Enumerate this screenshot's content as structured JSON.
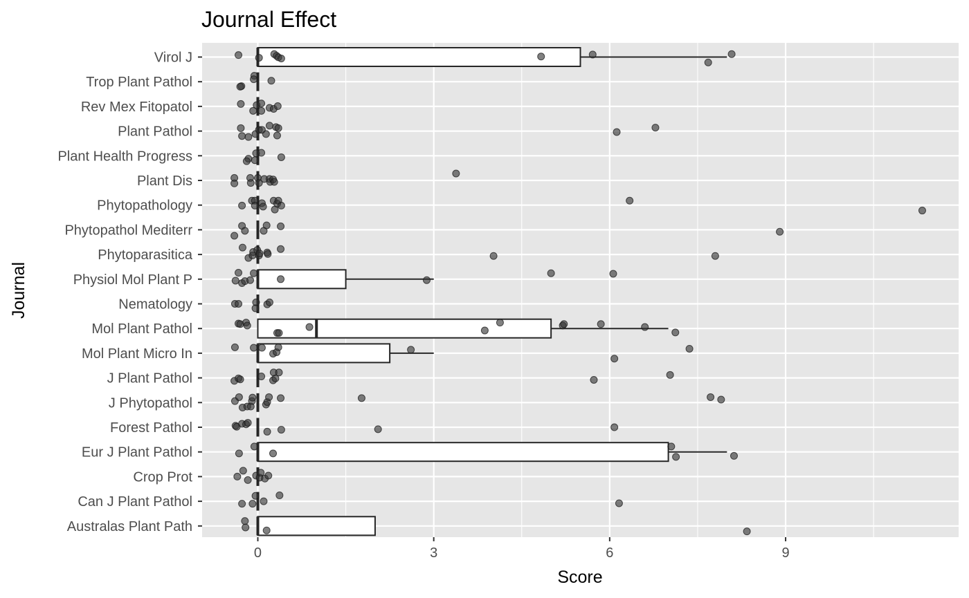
{
  "chart_data": {
    "type": "boxplot",
    "title": "Journal Effect",
    "xlabel": "Score",
    "ylabel": "Journal",
    "xlim": [
      -0.95,
      11.95
    ],
    "x_ticks": [
      0,
      3,
      6,
      9
    ],
    "grid": true,
    "legend": "none",
    "colors": {
      "panel": "#e6e6e6",
      "grid": "#ffffff",
      "box_fill": "#ffffff",
      "box_stroke": "#262626",
      "point": "#333333",
      "tick": "#333333",
      "tick_label": "#4d4d4d"
    },
    "categories": [
      "Virol J",
      "Trop Plant Pathol",
      "Rev Mex Fitopatol",
      "Plant Pathol",
      "Plant Health Progress",
      "Plant Dis",
      "Phytopathology",
      "Phytopathol Mediterr",
      "Phytoparasitica",
      "Physiol Mol Plant P",
      "Nematology",
      "Mol Plant Pathol",
      "Mol Plant Micro In",
      "J Plant Pathol",
      "J Phytopathol",
      "Forest Pathol",
      "Eur J Plant Pathol",
      "Crop Prot",
      "Can J Plant Pathol",
      "Australas Plant Path"
    ],
    "boxes": [
      {
        "name": "Virol J",
        "min": 0,
        "q1": 0,
        "median": 0,
        "q3": 5.5,
        "max": 8.0
      },
      {
        "name": "Trop Plant Pathol",
        "min": 0,
        "q1": 0,
        "median": 0,
        "q3": 0,
        "max": 0
      },
      {
        "name": "Rev Mex Fitopatol",
        "min": 0,
        "q1": 0,
        "median": 0,
        "q3": 0,
        "max": 0
      },
      {
        "name": "Plant Pathol",
        "min": 0,
        "q1": 0,
        "median": 0,
        "q3": 0,
        "max": 0
      },
      {
        "name": "Plant Health Progress",
        "min": 0,
        "q1": 0,
        "median": 0,
        "q3": 0,
        "max": 0
      },
      {
        "name": "Plant Dis",
        "min": 0,
        "q1": 0,
        "median": 0,
        "q3": 0,
        "max": 0
      },
      {
        "name": "Phytopathology",
        "min": 0,
        "q1": 0,
        "median": 0,
        "q3": 0,
        "max": 0
      },
      {
        "name": "Phytopathol Mediterr",
        "min": 0,
        "q1": 0,
        "median": 0,
        "q3": 0,
        "max": 0
      },
      {
        "name": "Phytoparasitica",
        "min": 0,
        "q1": 0,
        "median": 0,
        "q3": 0,
        "max": 0
      },
      {
        "name": "Physiol Mol Plant P",
        "min": 0,
        "q1": 0,
        "median": 0,
        "q3": 1.5,
        "max": 3.0
      },
      {
        "name": "Nematology",
        "min": 0,
        "q1": 0,
        "median": 0,
        "q3": 0,
        "max": 0
      },
      {
        "name": "Mol Plant Pathol",
        "min": 0,
        "q1": 0,
        "median": 1.0,
        "q3": 5.0,
        "max": 7.0
      },
      {
        "name": "Mol Plant Micro In",
        "min": 0,
        "q1": 0,
        "median": 0,
        "q3": 2.25,
        "max": 3.0
      },
      {
        "name": "J Plant Pathol",
        "min": 0,
        "q1": 0,
        "median": 0,
        "q3": 0,
        "max": 0
      },
      {
        "name": "J Phytopathol",
        "min": 0,
        "q1": 0,
        "median": 0,
        "q3": 0,
        "max": 0
      },
      {
        "name": "Forest Pathol",
        "min": 0,
        "q1": 0,
        "median": 0,
        "q3": 0,
        "max": 0
      },
      {
        "name": "Eur J Plant Pathol",
        "min": 0,
        "q1": 0,
        "median": 0,
        "q3": 7.0,
        "max": 8.0
      },
      {
        "name": "Crop Prot",
        "min": 0,
        "q1": 0,
        "median": 0,
        "q3": 0,
        "max": 0
      },
      {
        "name": "Can J Plant Pathol",
        "min": 0,
        "q1": 0,
        "median": 0,
        "q3": 0,
        "max": 0
      },
      {
        "name": "Australas Plant Path",
        "min": 0,
        "q1": 0,
        "median": 0,
        "q3": 2.0,
        "max": 2.0
      }
    ],
    "points": [
      {
        "cat": "Virol J",
        "x": -0.33,
        "j": 0.08
      },
      {
        "cat": "Virol J",
        "x": 0.02,
        "j": -0.03
      },
      {
        "cat": "Virol J",
        "x": 0.28,
        "j": 0.12
      },
      {
        "cat": "Virol J",
        "x": 0.32,
        "j": 0.05
      },
      {
        "cat": "Virol J",
        "x": 0.35,
        "j": -0.01
      },
      {
        "cat": "Virol J",
        "x": 0.4,
        "j": -0.06
      },
      {
        "cat": "Virol J",
        "x": 4.83,
        "j": 0.02
      },
      {
        "cat": "Virol J",
        "x": 5.71,
        "j": 0.1
      },
      {
        "cat": "Virol J",
        "x": 7.68,
        "j": -0.22
      },
      {
        "cat": "Virol J",
        "x": 8.08,
        "j": 0.12
      },
      {
        "cat": "Trop Plant Pathol",
        "x": -0.06,
        "j": 0.24
      },
      {
        "cat": "Trop Plant Pathol",
        "x": -0.07,
        "j": 0.1
      },
      {
        "cat": "Trop Plant Pathol",
        "x": -0.28,
        "j": -0.18
      },
      {
        "cat": "Trop Plant Pathol",
        "x": -0.3,
        "j": -0.2
      },
      {
        "cat": "Trop Plant Pathol",
        "x": 0.23,
        "j": 0.04
      },
      {
        "cat": "Rev Mex Fitopatol",
        "x": -0.29,
        "j": 0.1
      },
      {
        "cat": "Rev Mex Fitopatol",
        "x": -0.08,
        "j": -0.18
      },
      {
        "cat": "Rev Mex Fitopatol",
        "x": -0.02,
        "j": 0.05
      },
      {
        "cat": "Rev Mex Fitopatol",
        "x": 0.06,
        "j": 0.12
      },
      {
        "cat": "Rev Mex Fitopatol",
        "x": 0.06,
        "j": -0.18
      },
      {
        "cat": "Rev Mex Fitopatol",
        "x": 0.2,
        "j": -0.06
      },
      {
        "cat": "Rev Mex Fitopatol",
        "x": 0.27,
        "j": -0.1
      },
      {
        "cat": "Rev Mex Fitopatol",
        "x": 0.34,
        "j": 0.01
      },
      {
        "cat": "Plant Pathol",
        "x": -0.29,
        "j": 0.12
      },
      {
        "cat": "Plant Pathol",
        "x": -0.27,
        "j": -0.2
      },
      {
        "cat": "Plant Pathol",
        "x": -0.16,
        "j": -0.24
      },
      {
        "cat": "Plant Pathol",
        "x": -0.04,
        "j": -0.12
      },
      {
        "cat": "Plant Pathol",
        "x": 0.02,
        "j": 0.05
      },
      {
        "cat": "Plant Pathol",
        "x": 0.07,
        "j": 0.05
      },
      {
        "cat": "Plant Pathol",
        "x": 0.14,
        "j": -0.12
      },
      {
        "cat": "Plant Pathol",
        "x": 0.2,
        "j": 0.22
      },
      {
        "cat": "Plant Pathol",
        "x": 0.31,
        "j": 0.16
      },
      {
        "cat": "Plant Pathol",
        "x": 0.33,
        "j": -0.18
      },
      {
        "cat": "Plant Pathol",
        "x": 0.35,
        "j": 0.12
      },
      {
        "cat": "Plant Pathol",
        "x": 6.12,
        "j": -0.04
      },
      {
        "cat": "Plant Pathol",
        "x": 6.78,
        "j": 0.14
      },
      {
        "cat": "Plant Health Progress",
        "x": -0.16,
        "j": -0.12
      },
      {
        "cat": "Plant Health Progress",
        "x": -0.19,
        "j": -0.22
      },
      {
        "cat": "Plant Health Progress",
        "x": -0.05,
        "j": -0.18
      },
      {
        "cat": "Plant Health Progress",
        "x": -0.03,
        "j": 0.1
      },
      {
        "cat": "Plant Health Progress",
        "x": 0.06,
        "j": 0.12
      },
      {
        "cat": "Plant Health Progress",
        "x": 0.4,
        "j": -0.06
      },
      {
        "cat": "Plant Dis",
        "x": -0.4,
        "j": 0.1
      },
      {
        "cat": "Plant Dis",
        "x": -0.4,
        "j": -0.12
      },
      {
        "cat": "Plant Dis",
        "x": -0.13,
        "j": 0.1
      },
      {
        "cat": "Plant Dis",
        "x": -0.12,
        "j": -0.1
      },
      {
        "cat": "Plant Dis",
        "x": 0.0,
        "j": 0.1
      },
      {
        "cat": "Plant Dis",
        "x": 0.02,
        "j": -0.1
      },
      {
        "cat": "Plant Dis",
        "x": 0.11,
        "j": 0.06
      },
      {
        "cat": "Plant Dis",
        "x": 0.2,
        "j": 0.06
      },
      {
        "cat": "Plant Dis",
        "x": 0.21,
        "j": -0.06
      },
      {
        "cat": "Plant Dis",
        "x": 0.26,
        "j": 0.04
      },
      {
        "cat": "Plant Dis",
        "x": 0.28,
        "j": -0.06
      },
      {
        "cat": "Plant Dis",
        "x": 3.38,
        "j": 0.28
      },
      {
        "cat": "Phytopathology",
        "x": -0.27,
        "j": -0.02
      },
      {
        "cat": "Phytopathology",
        "x": -0.1,
        "j": 0.18
      },
      {
        "cat": "Phytopathology",
        "x": -0.05,
        "j": 0.18
      },
      {
        "cat": "Phytopathology",
        "x": -0.05,
        "j": -0.02
      },
      {
        "cat": "Phytopathology",
        "x": 0.07,
        "j": 0.08
      },
      {
        "cat": "Phytopathology",
        "x": 0.09,
        "j": -0.06
      },
      {
        "cat": "Phytopathology",
        "x": 0.27,
        "j": 0.18
      },
      {
        "cat": "Phytopathology",
        "x": 0.29,
        "j": -0.18
      },
      {
        "cat": "Phytopathology",
        "x": 0.33,
        "j": 0.06
      },
      {
        "cat": "Phytopathology",
        "x": 0.35,
        "j": 0.18
      },
      {
        "cat": "Phytopathology",
        "x": 0.4,
        "j": -0.02
      },
      {
        "cat": "Phytopathology",
        "x": 6.34,
        "j": 0.18
      },
      {
        "cat": "Phytopathology",
        "x": 11.33,
        "j": -0.22
      },
      {
        "cat": "Phytopathol Mediterr",
        "x": -0.4,
        "j": -0.24
      },
      {
        "cat": "Phytopathol Mediterr",
        "x": -0.27,
        "j": 0.16
      },
      {
        "cat": "Phytopathol Mediterr",
        "x": -0.22,
        "j": -0.04
      },
      {
        "cat": "Phytopathol Mediterr",
        "x": 0.1,
        "j": -0.04
      },
      {
        "cat": "Phytopathol Mediterr",
        "x": 0.15,
        "j": 0.18
      },
      {
        "cat": "Phytopathol Mediterr",
        "x": 0.39,
        "j": 0.14
      },
      {
        "cat": "Phytopathol Mediterr",
        "x": 8.9,
        "j": -0.08
      },
      {
        "cat": "Phytoparasitica",
        "x": -0.26,
        "j": 0.28
      },
      {
        "cat": "Phytoparasitica",
        "x": -0.16,
        "j": -0.14
      },
      {
        "cat": "Phytoparasitica",
        "x": -0.09,
        "j": -0.04
      },
      {
        "cat": "Phytoparasitica",
        "x": -0.08,
        "j": 0.1
      },
      {
        "cat": "Phytoparasitica",
        "x": -0.01,
        "j": 0.18
      },
      {
        "cat": "Phytoparasitica",
        "x": 0.02,
        "j": -0.04
      },
      {
        "cat": "Phytoparasitica",
        "x": 0.03,
        "j": 0.04
      },
      {
        "cat": "Phytoparasitica",
        "x": 0.16,
        "j": 0.08
      },
      {
        "cat": "Phytoparasitica",
        "x": 0.17,
        "j": 0.02
      },
      {
        "cat": "Phytoparasitica",
        "x": 0.39,
        "j": 0.22
      },
      {
        "cat": "Phytoparasitica",
        "x": 4.02,
        "j": -0.06
      },
      {
        "cat": "Phytoparasitica",
        "x": 7.8,
        "j": -0.06
      },
      {
        "cat": "Physiol Mol Plant P",
        "x": -0.33,
        "j": 0.26
      },
      {
        "cat": "Physiol Mol Plant P",
        "x": -0.38,
        "j": -0.06
      },
      {
        "cat": "Physiol Mol Plant P",
        "x": -0.27,
        "j": -0.16
      },
      {
        "cat": "Physiol Mol Plant P",
        "x": -0.22,
        "j": -0.08
      },
      {
        "cat": "Physiol Mol Plant P",
        "x": -0.13,
        "j": -0.04
      },
      {
        "cat": "Physiol Mol Plant P",
        "x": -0.07,
        "j": 0.24
      },
      {
        "cat": "Physiol Mol Plant P",
        "x": 0.39,
        "j": 0.0
      },
      {
        "cat": "Physiol Mol Plant P",
        "x": 2.88,
        "j": -0.04
      },
      {
        "cat": "Physiol Mol Plant P",
        "x": 5.0,
        "j": 0.24
      },
      {
        "cat": "Physiol Mol Plant P",
        "x": 6.06,
        "j": 0.22
      },
      {
        "cat": "Nematology",
        "x": -0.39,
        "j": 0.0
      },
      {
        "cat": "Nematology",
        "x": -0.33,
        "j": 0.0
      },
      {
        "cat": "Nematology",
        "x": -0.03,
        "j": 0.06
      },
      {
        "cat": "Nematology",
        "x": -0.04,
        "j": -0.18
      },
      {
        "cat": "Nematology",
        "x": 0.16,
        "j": -0.02
      },
      {
        "cat": "Nematology",
        "x": 0.2,
        "j": 0.06
      },
      {
        "cat": "Mol Plant Pathol",
        "x": -0.33,
        "j": 0.2
      },
      {
        "cat": "Mol Plant Pathol",
        "x": -0.3,
        "j": 0.18
      },
      {
        "cat": "Mol Plant Pathol",
        "x": -0.2,
        "j": 0.24
      },
      {
        "cat": "Mol Plant Pathol",
        "x": -0.18,
        "j": 0.12
      },
      {
        "cat": "Mol Plant Pathol",
        "x": 0.33,
        "j": -0.18
      },
      {
        "cat": "Mol Plant Pathol",
        "x": 0.36,
        "j": -0.18
      },
      {
        "cat": "Mol Plant Pathol",
        "x": 0.88,
        "j": 0.06
      },
      {
        "cat": "Mol Plant Pathol",
        "x": 3.87,
        "j": -0.08
      },
      {
        "cat": "Mol Plant Pathol",
        "x": 4.13,
        "j": 0.24
      },
      {
        "cat": "Mol Plant Pathol",
        "x": 5.2,
        "j": 0.12
      },
      {
        "cat": "Mol Plant Pathol",
        "x": 5.22,
        "j": 0.18
      },
      {
        "cat": "Mol Plant Pathol",
        "x": 5.85,
        "j": 0.18
      },
      {
        "cat": "Mol Plant Pathol",
        "x": 6.6,
        "j": 0.06
      },
      {
        "cat": "Mol Plant Pathol",
        "x": 7.12,
        "j": -0.16
      },
      {
        "cat": "Mol Plant Micro In",
        "x": -0.39,
        "j": 0.24
      },
      {
        "cat": "Mol Plant Micro In",
        "x": -0.07,
        "j": 0.22
      },
      {
        "cat": "Mol Plant Micro In",
        "x": 0.07,
        "j": 0.22
      },
      {
        "cat": "Mol Plant Micro In",
        "x": 0.26,
        "j": -0.02
      },
      {
        "cat": "Mol Plant Micro In",
        "x": 0.32,
        "j": 0.04
      },
      {
        "cat": "Mol Plant Micro In",
        "x": 0.35,
        "j": 0.24
      },
      {
        "cat": "Mol Plant Micro In",
        "x": 2.61,
        "j": 0.14
      },
      {
        "cat": "Mol Plant Micro In",
        "x": 6.08,
        "j": -0.22
      },
      {
        "cat": "Mol Plant Micro In",
        "x": 7.36,
        "j": 0.18
      },
      {
        "cat": "J Plant Pathol",
        "x": -0.4,
        "j": -0.12
      },
      {
        "cat": "J Plant Pathol",
        "x": -0.33,
        "j": -0.02
      },
      {
        "cat": "J Plant Pathol",
        "x": -0.3,
        "j": -0.06
      },
      {
        "cat": "J Plant Pathol",
        "x": 0.06,
        "j": 0.06
      },
      {
        "cat": "J Plant Pathol",
        "x": 0.27,
        "j": 0.22
      },
      {
        "cat": "J Plant Pathol",
        "x": 0.26,
        "j": -0.1
      },
      {
        "cat": "J Plant Pathol",
        "x": 0.3,
        "j": -0.02
      },
      {
        "cat": "J Plant Pathol",
        "x": 0.36,
        "j": 0.22
      },
      {
        "cat": "J Plant Pathol",
        "x": 5.73,
        "j": -0.08
      },
      {
        "cat": "J Plant Pathol",
        "x": 7.03,
        "j": 0.12
      },
      {
        "cat": "J Phytopathol",
        "x": -0.39,
        "j": 0.06
      },
      {
        "cat": "J Phytopathol",
        "x": -0.32,
        "j": 0.22
      },
      {
        "cat": "J Phytopathol",
        "x": -0.26,
        "j": -0.2
      },
      {
        "cat": "J Phytopathol",
        "x": -0.18,
        "j": -0.16
      },
      {
        "cat": "J Phytopathol",
        "x": -0.12,
        "j": -0.16
      },
      {
        "cat": "J Phytopathol",
        "x": -0.1,
        "j": 0.06
      },
      {
        "cat": "J Phytopathol",
        "x": -0.09,
        "j": 0.2
      },
      {
        "cat": "J Phytopathol",
        "x": 0.14,
        "j": -0.08
      },
      {
        "cat": "J Phytopathol",
        "x": 0.16,
        "j": 0.02
      },
      {
        "cat": "J Phytopathol",
        "x": 0.19,
        "j": 0.22
      },
      {
        "cat": "J Phytopathol",
        "x": 0.39,
        "j": 0.18
      },
      {
        "cat": "J Phytopathol",
        "x": 1.77,
        "j": 0.18
      },
      {
        "cat": "J Phytopathol",
        "x": 7.72,
        "j": 0.22
      },
      {
        "cat": "J Phytopathol",
        "x": 7.9,
        "j": 0.12
      },
      {
        "cat": "Forest Pathol",
        "x": -0.38,
        "j": 0.06
      },
      {
        "cat": "Forest Pathol",
        "x": -0.36,
        "j": 0.02
      },
      {
        "cat": "Forest Pathol",
        "x": -0.27,
        "j": 0.14
      },
      {
        "cat": "Forest Pathol",
        "x": -0.2,
        "j": 0.12
      },
      {
        "cat": "Forest Pathol",
        "x": -0.17,
        "j": 0.18
      },
      {
        "cat": "Forest Pathol",
        "x": 0.16,
        "j": -0.18
      },
      {
        "cat": "Forest Pathol",
        "x": 0.4,
        "j": -0.1
      },
      {
        "cat": "Forest Pathol",
        "x": 2.05,
        "j": -0.08
      },
      {
        "cat": "Forest Pathol",
        "x": 6.08,
        "j": 0.0
      },
      {
        "cat": "Eur J Plant Pathol",
        "x": -0.32,
        "j": -0.06
      },
      {
        "cat": "Eur J Plant Pathol",
        "x": -0.06,
        "j": 0.22
      },
      {
        "cat": "Eur J Plant Pathol",
        "x": 0.26,
        "j": -0.06
      },
      {
        "cat": "Eur J Plant Pathol",
        "x": 7.05,
        "j": 0.22
      },
      {
        "cat": "Eur J Plant Pathol",
        "x": 7.13,
        "j": -0.2
      },
      {
        "cat": "Eur J Plant Pathol",
        "x": 8.12,
        "j": -0.16
      },
      {
        "cat": "Crop Prot",
        "x": -0.25,
        "j": 0.24
      },
      {
        "cat": "Crop Prot",
        "x": -0.35,
        "j": 0.0
      },
      {
        "cat": "Crop Prot",
        "x": -0.17,
        "j": -0.14
      },
      {
        "cat": "Crop Prot",
        "x": -0.03,
        "j": 0.04
      },
      {
        "cat": "Crop Prot",
        "x": 0.03,
        "j": -0.04
      },
      {
        "cat": "Crop Prot",
        "x": 0.05,
        "j": 0.16
      },
      {
        "cat": "Crop Prot",
        "x": 0.12,
        "j": -0.08
      },
      {
        "cat": "Crop Prot",
        "x": 0.18,
        "j": 0.04
      },
      {
        "cat": "Can J Plant Pathol",
        "x": -0.27,
        "j": -0.1
      },
      {
        "cat": "Can J Plant Pathol",
        "x": -0.09,
        "j": -0.1
      },
      {
        "cat": "Can J Plant Pathol",
        "x": -0.04,
        "j": 0.22
      },
      {
        "cat": "Can J Plant Pathol",
        "x": 0.1,
        "j": 0.0
      },
      {
        "cat": "Can J Plant Pathol",
        "x": 0.37,
        "j": 0.24
      },
      {
        "cat": "Can J Plant Pathol",
        "x": 6.16,
        "j": -0.08
      },
      {
        "cat": "Australas Plant Path",
        "x": -0.22,
        "j": 0.2
      },
      {
        "cat": "Australas Plant Path",
        "x": -0.21,
        "j": -0.06
      },
      {
        "cat": "Australas Plant Path",
        "x": 0.15,
        "j": -0.18
      },
      {
        "cat": "Australas Plant Path",
        "x": 8.34,
        "j": -0.22
      }
    ]
  }
}
